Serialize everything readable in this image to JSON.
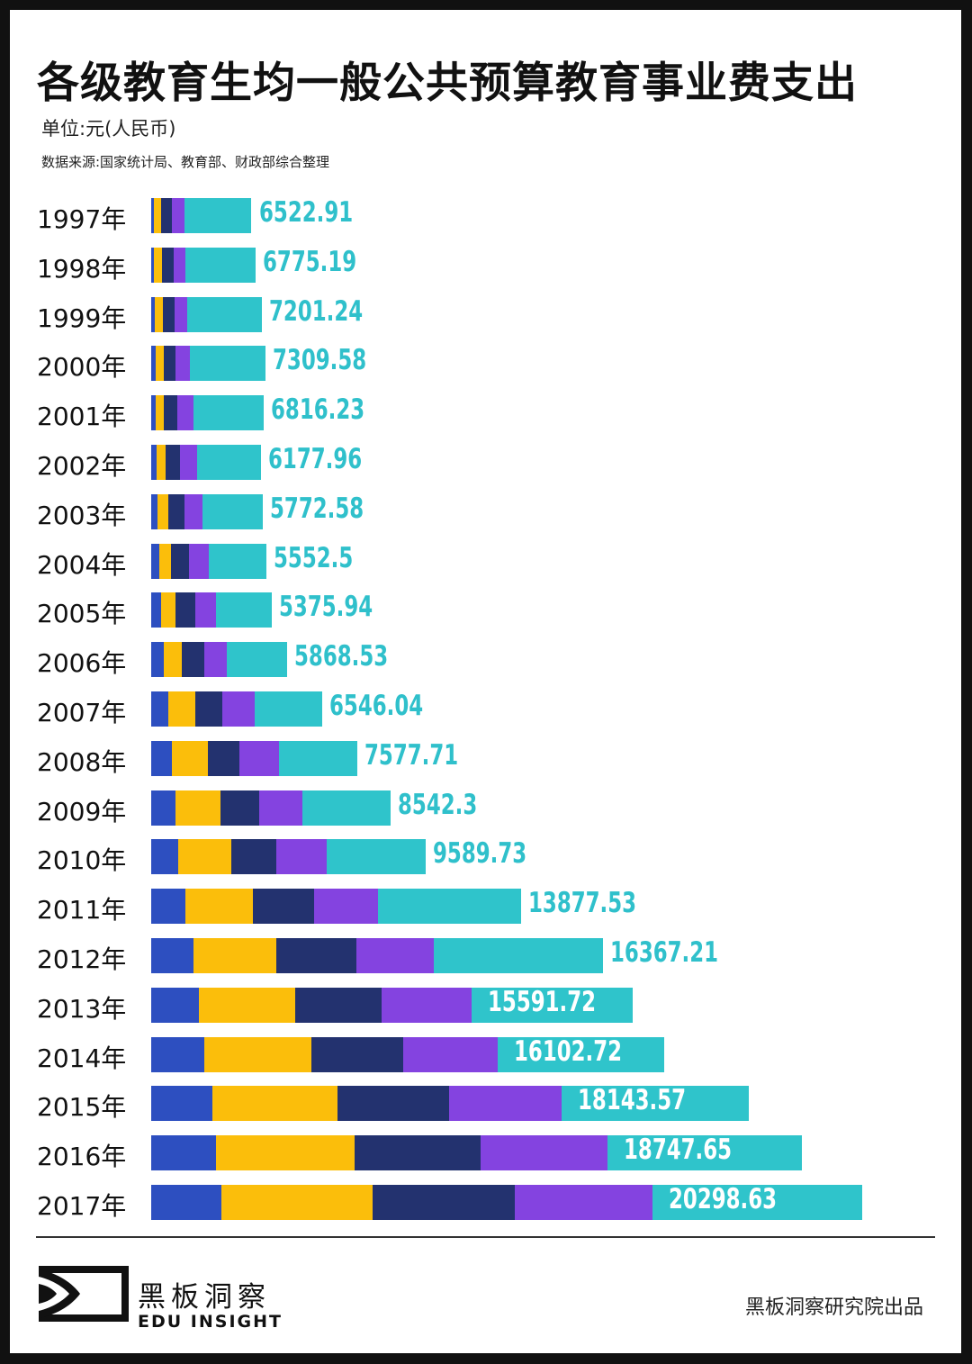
{
  "header": {
    "title": "各级教育生均一般公共预算教育事业费支出",
    "unit": "单位:元(人民币)",
    "source": "数据来源:国家统计局、教育部、财政部综合整理"
  },
  "chart_data": {
    "type": "bar",
    "orientation": "horizontal",
    "stacked": true,
    "title": "各级教育生均一般公共预算教育事业费支出",
    "xlabel": "",
    "ylabel": "",
    "unit": "元(人民币)",
    "categories": [
      "1997年",
      "1998年",
      "1999年",
      "2000年",
      "2001年",
      "2002年",
      "2003年",
      "2004年",
      "2005年",
      "2006年",
      "2007年",
      "2008年",
      "2009年",
      "2010年",
      "2011年",
      "2012年",
      "2013年",
      "2014年",
      "2015年",
      "2016年",
      "2017年"
    ],
    "series": [
      {
        "name": "segment-1",
        "color": "#2d4fc0",
        "values": [
          270,
          300,
          340,
          400,
          450,
          520,
          640,
          780,
          1000,
          1200,
          1640,
          2010,
          2390,
          2610,
          3350,
          4100,
          4600,
          5100,
          5900,
          6300,
          6800
        ]
      },
      {
        "name": "segment-2",
        "color": "#fbbe0b",
        "values": [
          720,
          740,
          760,
          780,
          790,
          850,
          1020,
          1180,
          1380,
          1750,
          2650,
          3500,
          4350,
          5100,
          6480,
          8050,
          9300,
          10370,
          12100,
          13400,
          14600
        ]
      },
      {
        "name": "segment-3",
        "color": "#23326f",
        "values": [
          1050,
          1100,
          1140,
          1200,
          1300,
          1400,
          1540,
          1720,
          1920,
          2180,
          2620,
          3070,
          3680,
          4440,
          5960,
          7700,
          8400,
          8960,
          10800,
          12200,
          13800
        ]
      },
      {
        "name": "segment-4",
        "color": "#8443e0",
        "values": [
          1150,
          1180,
          1240,
          1400,
          1520,
          1640,
          1800,
          1880,
          1980,
          2180,
          3120,
          3810,
          4230,
          4800,
          6150,
          7520,
          8700,
          9100,
          10900,
          12300,
          13300
        ]
      },
      {
        "name": "segment-5",
        "color": "#2fc4cb",
        "values": [
          6522.91,
          6775.19,
          7201.24,
          7309.58,
          6816.23,
          6177.96,
          5772.58,
          5552.5,
          5375.94,
          5868.53,
          6546.04,
          7577.71,
          8542.3,
          9589.73,
          13877.53,
          16367.21,
          15591.72,
          16102.72,
          18143.57,
          18747.65,
          20298.63
        ]
      }
    ],
    "data_labels": [
      "6522.91",
      "6775.19",
      "7201.24",
      "7309.58",
      "6816.23",
      "6177.96",
      "5772.58",
      "5552.5",
      "5375.94",
      "5868.53",
      "6546.04",
      "7577.71",
      "8542.3",
      "9589.73",
      "13877.53",
      "16367.21",
      "15591.72",
      "16102.72",
      "18143.57",
      "18747.65",
      "20298.63"
    ],
    "legend": "none",
    "grid": false
  },
  "footer": {
    "brand_cn": "黑板洞察",
    "brand_en": "EDU INSIGHT",
    "credit": "黑板洞察研究院出品",
    "logo_icon": "eye-play-logo-icon"
  }
}
